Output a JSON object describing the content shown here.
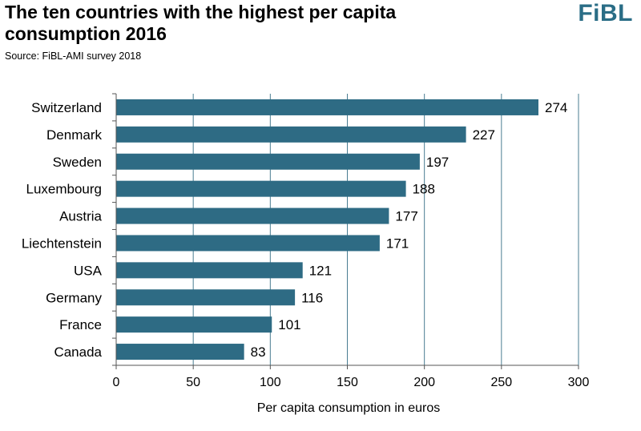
{
  "header": {
    "title": "The ten countries with the highest per capita consumption 2016",
    "source": "Source: FiBL-AMI survey 2018",
    "logo": "FiBL"
  },
  "colors": {
    "bar": "#2e6b84",
    "logo": "#2a6d86",
    "grid": "#4a7d92",
    "axis": "#555555"
  },
  "chart_data": {
    "type": "bar",
    "orientation": "horizontal",
    "title": "The ten countries with the highest per capita consumption 2016",
    "xlabel": "Per capita consumption in euros",
    "ylabel": "",
    "categories": [
      "Switzerland",
      "Denmark",
      "Sweden",
      "Luxembourg",
      "Austria",
      "Liechtenstein",
      "USA",
      "Germany",
      "France",
      "Canada"
    ],
    "values": [
      274,
      227,
      197,
      188,
      177,
      171,
      121,
      116,
      101,
      83
    ],
    "xlim": [
      0,
      300
    ],
    "xticks": [
      0,
      50,
      100,
      150,
      200,
      250,
      300
    ],
    "grid": "vertical",
    "data_labels": true
  }
}
